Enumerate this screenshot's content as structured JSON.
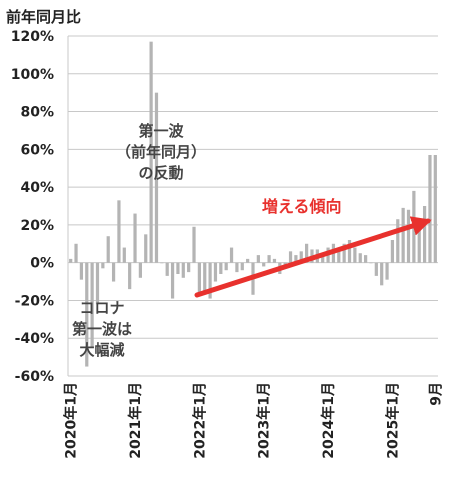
{
  "chart_data": {
    "type": "bar",
    "ylabel": "前年同月比",
    "ylim": [
      -60,
      120
    ],
    "yticks": [
      "120%",
      "100%",
      "80%",
      "60%",
      "40%",
      "20%",
      "0%",
      "-20%",
      "-40%",
      "-60%"
    ],
    "xtick_labels": [
      "2020年1月",
      "2021年1月",
      "2022年1月",
      "2023年1月",
      "2024年1月",
      "2025年1月",
      "9月"
    ],
    "grid": "horizontal",
    "bar_color": "#b4b4b4",
    "annotations": [
      {
        "lines": [
          "第一波",
          "（前年同月）",
          "の反動"
        ]
      },
      {
        "lines": [
          "コロナ",
          "第一波は",
          "大幅減"
        ]
      }
    ],
    "trend": {
      "label": "増える傾向",
      "color": "#e8312d"
    },
    "series": [
      {
        "x": [
          "2020-01",
          "2020-02",
          "2020-03",
          "2020-04",
          "2020-05",
          "2020-06",
          "2020-07",
          "2020-08",
          "2020-09",
          "2020-10",
          "2020-11",
          "2020-12",
          "2021-01",
          "2021-02",
          "2021-03",
          "2021-04",
          "2021-05",
          "2021-06",
          "2021-07",
          "2021-08",
          "2021-09",
          "2021-10",
          "2021-11",
          "2021-12",
          "2022-01",
          "2022-02",
          "2022-03",
          "2022-04",
          "2022-05",
          "2022-06",
          "2022-07",
          "2022-08",
          "2022-09",
          "2022-10",
          "2022-11",
          "2022-12",
          "2023-01",
          "2023-02",
          "2023-03",
          "2023-04",
          "2023-05",
          "2023-06",
          "2023-07",
          "2023-08",
          "2023-09",
          "2023-10",
          "2023-11",
          "2023-12",
          "2024-01",
          "2024-02",
          "2024-03",
          "2024-04",
          "2024-05",
          "2024-06",
          "2024-07",
          "2024-08",
          "2024-09",
          "2024-10",
          "2024-11",
          "2024-12",
          "2025-01",
          "2025-02",
          "2025-03",
          "2025-04",
          "2025-05",
          "2025-06",
          "2025-07",
          "2025-08",
          "2025-09"
        ],
        "values": [
          2,
          10,
          -9,
          -55,
          -45,
          -22,
          -3,
          14,
          -10,
          33,
          8,
          -14,
          26,
          -8,
          15,
          117,
          90,
          0,
          -7,
          -19,
          -6,
          -8,
          -5,
          19,
          -16,
          -15,
          -19,
          -10,
          -6,
          -4,
          8,
          -5,
          -4,
          2,
          -17,
          4,
          -2,
          4,
          2,
          -6,
          -2,
          6,
          4,
          6,
          10,
          7,
          7,
          5,
          8,
          10,
          6,
          10,
          12,
          8,
          5,
          4,
          0,
          -7,
          -12,
          -9,
          12,
          23,
          29,
          28,
          38,
          22,
          30,
          57,
          57
        ]
      }
    ]
  }
}
